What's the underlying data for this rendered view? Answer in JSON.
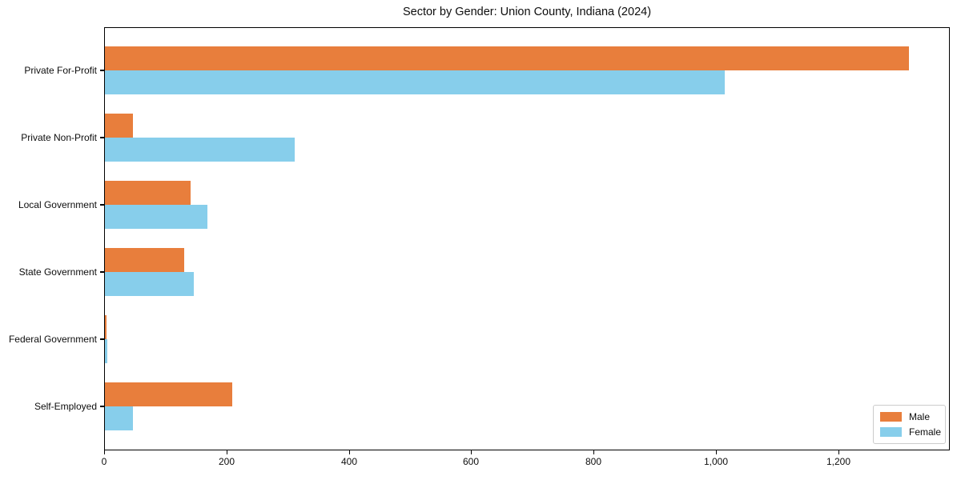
{
  "chart_data": {
    "type": "bar",
    "orientation": "horizontal",
    "title": "Sector by Gender: Union County, Indiana (2024)",
    "categories": [
      "Private For-Profit",
      "Private Non-Profit",
      "Local Government",
      "State Government",
      "Federal Government",
      "Self-Employed"
    ],
    "series": [
      {
        "name": "Male",
        "color": "#e87e3c",
        "values": [
          1314,
          46,
          140,
          129,
          2,
          208
        ]
      },
      {
        "name": "Female",
        "color": "#87ceeb",
        "values": [
          1013,
          310,
          167,
          145,
          4,
          46
        ]
      }
    ],
    "xlabel": "",
    "ylabel": "",
    "xlim": [
      0,
      1380
    ],
    "x_ticks": [
      0,
      200,
      400,
      600,
      800,
      1000,
      1200
    ],
    "x_tick_labels": [
      "0",
      "200",
      "400",
      "600",
      "800",
      "1,000",
      "1,200"
    ],
    "grid": false,
    "legend": {
      "position": "lower-right",
      "entries": [
        "Male",
        "Female"
      ]
    },
    "colors": {
      "male": "#e87e3c",
      "female": "#87ceeb",
      "spine": "#000000",
      "background": "#ffffff",
      "legend_border": "#cccccc"
    }
  }
}
